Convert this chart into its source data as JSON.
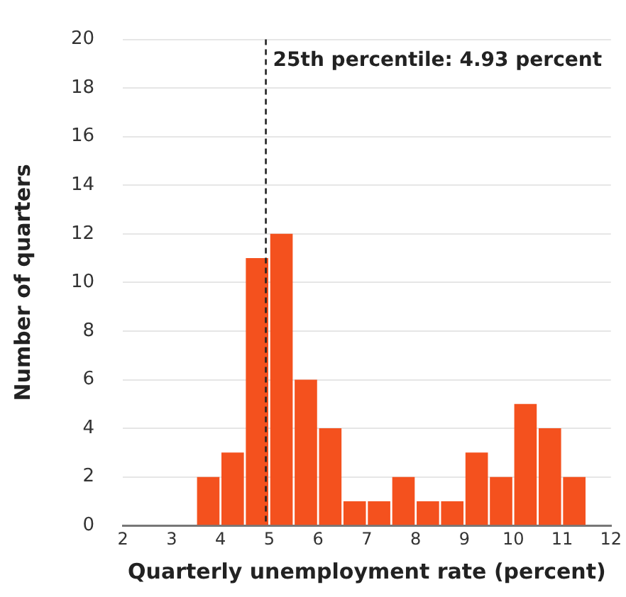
{
  "chart_data": {
    "type": "histogram",
    "xlabel": "Quarterly unemployment rate (percent)",
    "ylabel": "Number of quarters",
    "bins": [
      3.5,
      4,
      4.5,
      5,
      5.5,
      6,
      6.5,
      7,
      7.5,
      8,
      8.5,
      9,
      9.5,
      10,
      10.5,
      11,
      11.5
    ],
    "values": [
      2,
      3,
      11,
      12,
      6,
      4,
      1,
      1,
      2,
      1,
      1,
      3,
      2,
      5,
      4,
      2
    ],
    "color": "#f4511e",
    "xlim": [
      2,
      12
    ],
    "xticks": [
      2,
      3,
      4,
      5,
      6,
      7,
      8,
      9,
      10,
      11,
      12
    ],
    "ylim": [
      0,
      20
    ],
    "yticks": [
      0,
      2,
      4,
      6,
      8,
      10,
      12,
      14,
      16,
      18,
      20
    ],
    "grid": "y",
    "legend": false,
    "ref_lines": [
      {
        "axis": "x",
        "value": 4.93,
        "label": "25th percentile: 4.93 percent",
        "color": "#222222",
        "line_style": "dashed"
      }
    ]
  }
}
